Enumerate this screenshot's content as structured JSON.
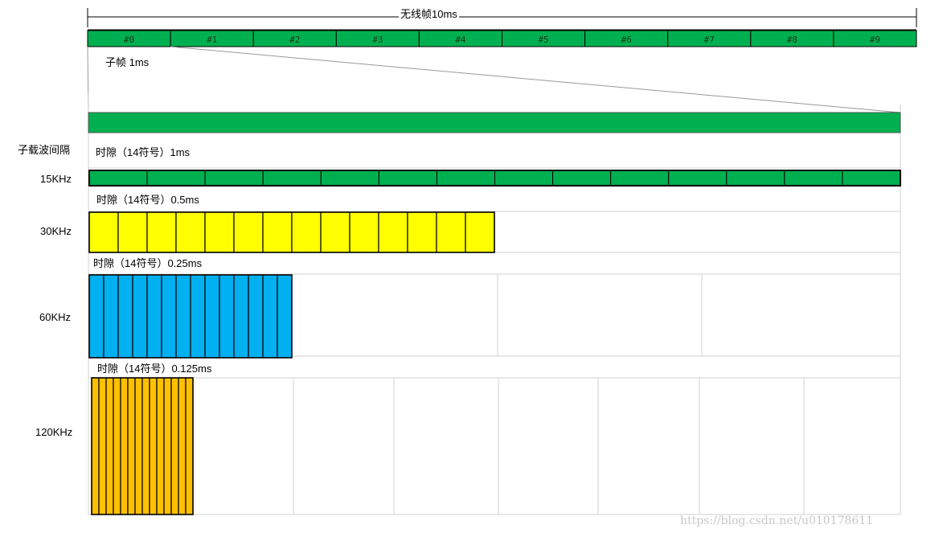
{
  "radio_frame": {
    "title": "无线帧10ms",
    "subframes": [
      "#0",
      "#1",
      "#2",
      "#3",
      "#4",
      "#5",
      "#6",
      "#7",
      "#8",
      "#9"
    ],
    "subframe_label": "子帧 1ms"
  },
  "subcarrier_spacing_header": "子载波间隔",
  "rows": [
    {
      "scs": "15KHz",
      "slot_label": "时隙（14符号）1ms",
      "symbols": 14,
      "color": "#00b050"
    },
    {
      "scs": "30KHz",
      "slot_label": "时隙（14符号）0.5ms",
      "symbols": 14,
      "color": "#ffff00"
    },
    {
      "scs": "60KHz",
      "slot_label": "时隙（14符号）0.25ms",
      "symbols": 14,
      "color": "#00b0f0"
    },
    {
      "scs": "120KHz",
      "slot_label": "时隙（14符号）0.125ms",
      "symbols": 14,
      "color": "#ffc000"
    }
  ],
  "colors": {
    "frame_green": "#00b050",
    "grid_line": "#d0d0d0"
  },
  "watermark": "https://blog.csdn.net/u010178611"
}
